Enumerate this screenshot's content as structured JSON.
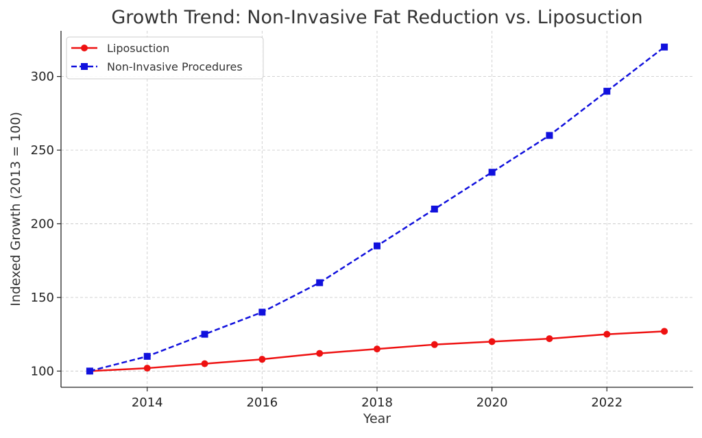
{
  "chart_data": {
    "type": "line",
    "title": "Growth Trend: Non-Invasive Fat Reduction vs. Liposuction",
    "xlabel": "Year",
    "ylabel": "Indexed Growth (2013 = 100)",
    "x": [
      2013,
      2014,
      2015,
      2016,
      2017,
      2018,
      2019,
      2020,
      2021,
      2022,
      2023
    ],
    "xlim": [
      2012.5,
      2023.5
    ],
    "ylim": [
      89,
      331
    ],
    "xticks": [
      2014,
      2016,
      2018,
      2020,
      2022
    ],
    "yticks": [
      100,
      150,
      200,
      250,
      300
    ],
    "grid": true,
    "legend_position": "top-left",
    "series": [
      {
        "name": "Liposuction",
        "values": [
          100,
          102,
          105,
          108,
          112,
          115,
          118,
          120,
          122,
          125,
          127
        ],
        "color": "#ee1111",
        "line_style": "solid",
        "marker": "circle"
      },
      {
        "name": "Non-Invasive Procedures",
        "values": [
          100,
          110,
          125,
          140,
          160,
          185,
          210,
          235,
          260,
          290,
          320
        ],
        "color": "#1111dd",
        "line_style": "dashed",
        "marker": "square"
      }
    ]
  }
}
